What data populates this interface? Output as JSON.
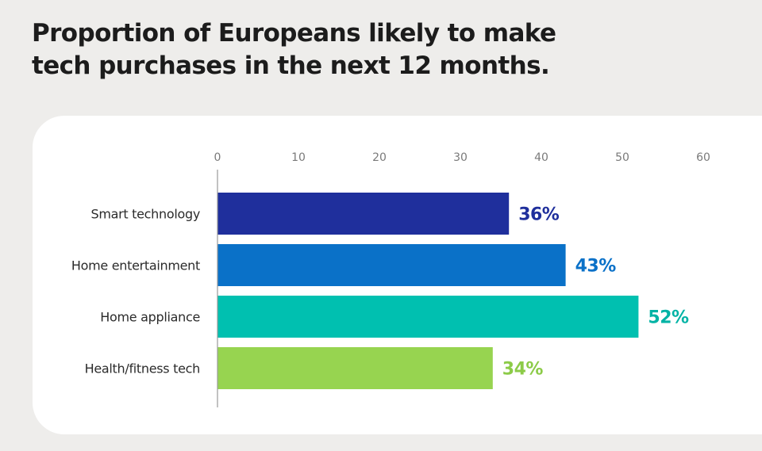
{
  "title_lines": [
    "Proportion of Europeans likely to make",
    "tech purchases in the next 12 months."
  ],
  "chart_data": {
    "type": "bar",
    "orientation": "horizontal",
    "title": "Proportion of Europeans likely to make tech purchases in the next 12 months.",
    "categories": [
      "Smart technology",
      "Home entertainment",
      "Home appliance",
      "Health/fitness tech"
    ],
    "values": [
      36,
      43,
      52,
      34
    ],
    "value_labels": [
      "36%",
      "43%",
      "52%",
      "34%"
    ],
    "xlim": [
      0,
      60
    ],
    "xticks": [
      0,
      10,
      20,
      30,
      40,
      50,
      60
    ],
    "xtick_labels": [
      "0",
      "10",
      "20",
      "30",
      "40",
      "50",
      "60"
    ],
    "xaxis_position": "top",
    "grid": false,
    "legend": "none",
    "bar_colors": [
      "#1f2f9c",
      "#0a71c8",
      "#00c0b0",
      "#97d450"
    ],
    "label_colors": [
      "#1f2f9c",
      "#0a71c8",
      "#00b3a5",
      "#8ccb48"
    ]
  }
}
